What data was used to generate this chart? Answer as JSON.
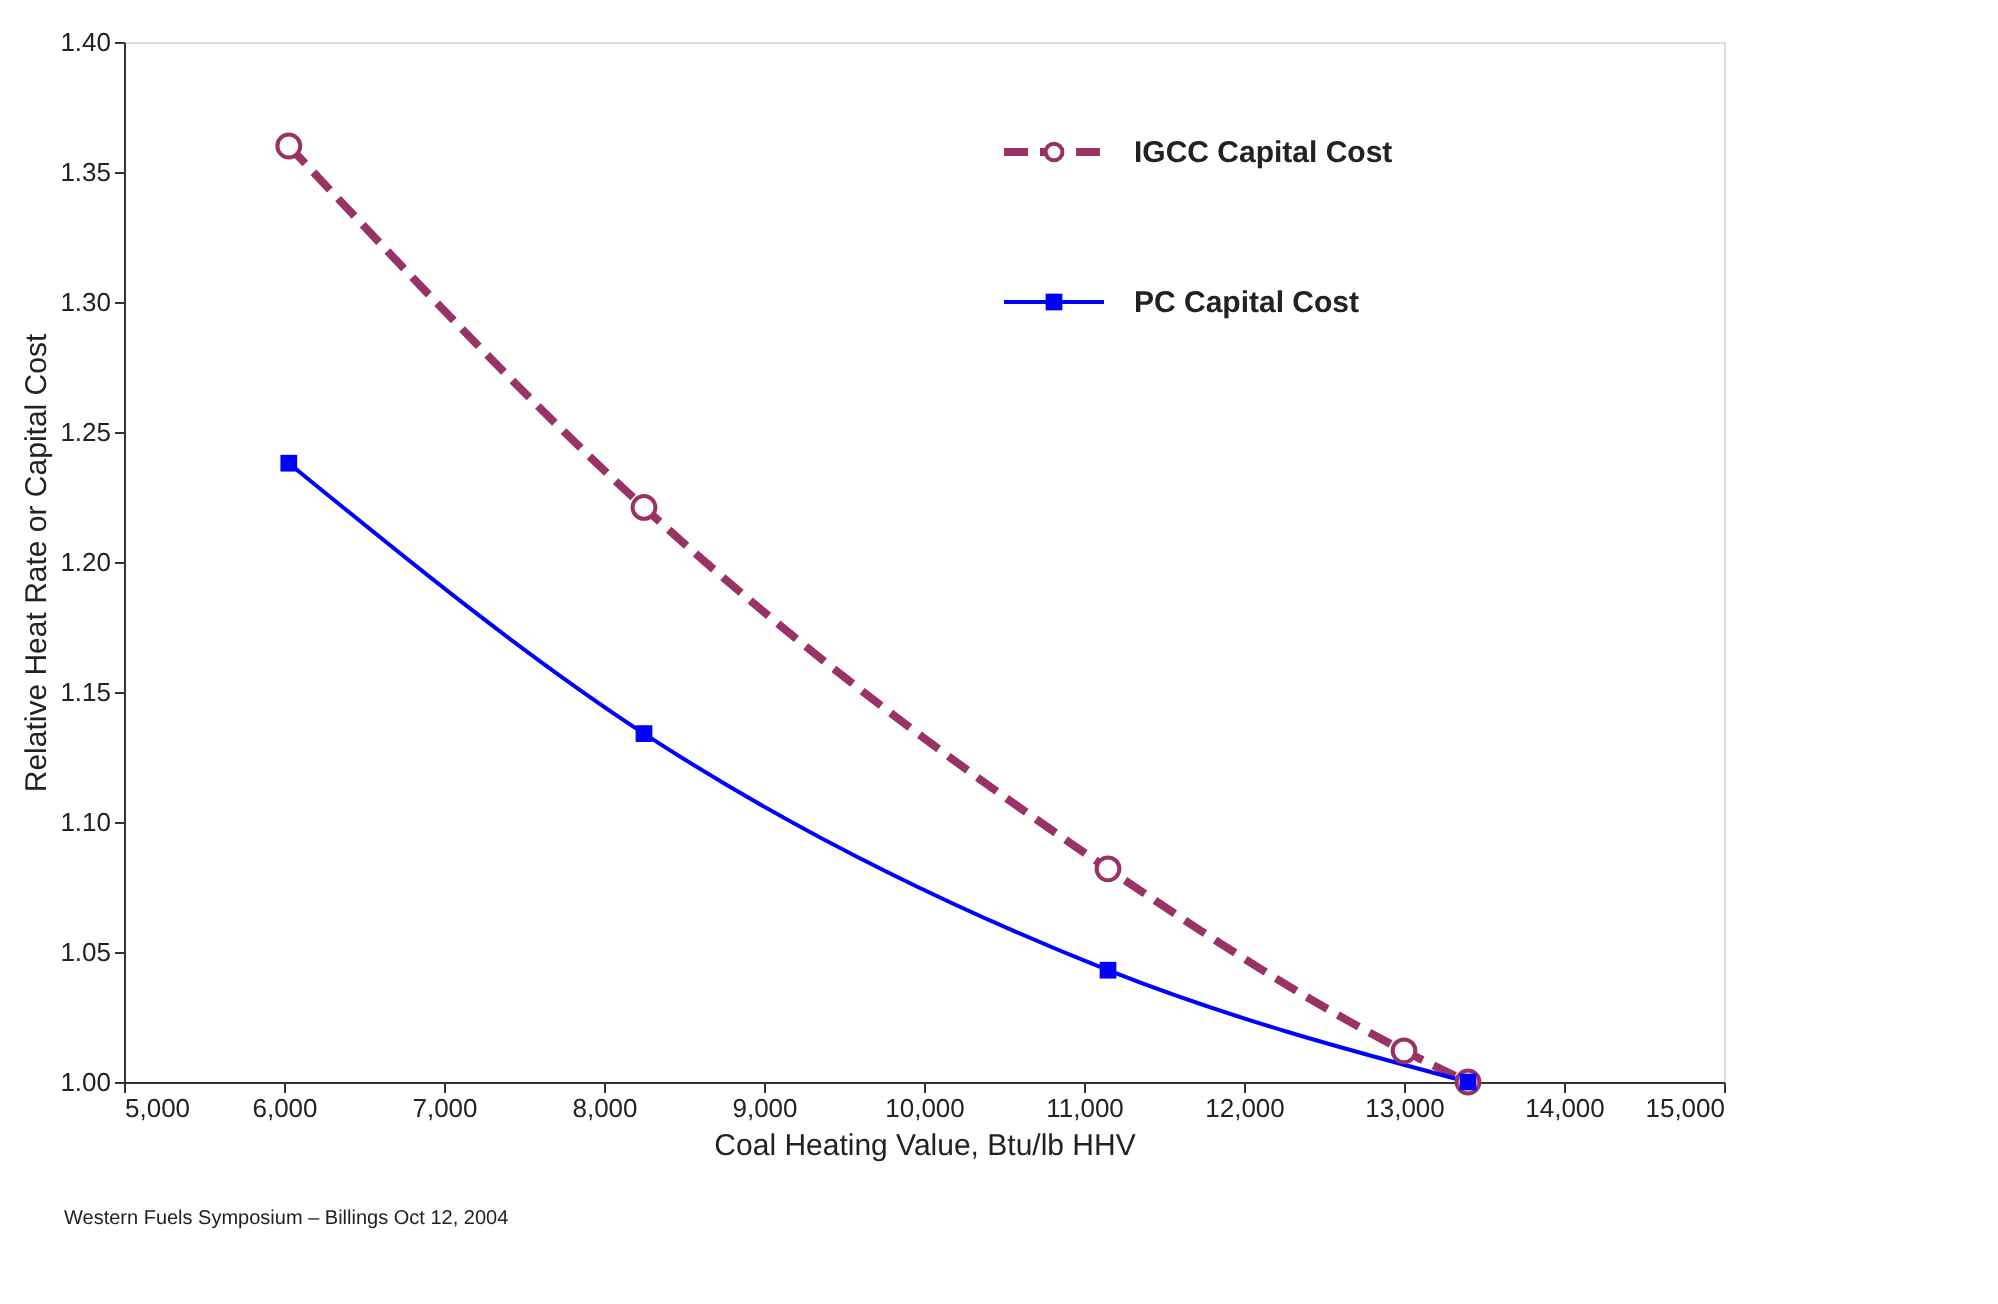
{
  "chart_data": {
    "type": "line",
    "xlabel": "Coal Heating Value, Btu/lb HHV",
    "ylabel": "Relative Heat Rate or Capital Cost",
    "xlim": [
      5000,
      15000
    ],
    "xticks": [
      {
        "value": 5000,
        "label": "5,000"
      },
      {
        "value": 6000,
        "label": "6,000"
      },
      {
        "value": 7000,
        "label": "7,000"
      },
      {
        "value": 8000,
        "label": "8,000"
      },
      {
        "value": 9000,
        "label": "9,000"
      },
      {
        "value": 10000,
        "label": "10,000"
      },
      {
        "value": 11000,
        "label": "11,000"
      },
      {
        "value": 12000,
        "label": "12,000"
      },
      {
        "value": 13000,
        "label": "13,000"
      },
      {
        "value": 14000,
        "label": "14,000"
      },
      {
        "value": 15000,
        "label": "15,000"
      }
    ],
    "ylim": [
      1.0,
      1.4
    ],
    "yticks": [
      {
        "value": 1.0,
        "label": "1.00"
      },
      {
        "value": 1.05,
        "label": "1.05"
      },
      {
        "value": 1.1,
        "label": "1.10"
      },
      {
        "value": 1.15,
        "label": "1.15"
      },
      {
        "value": 1.2,
        "label": "1.20"
      },
      {
        "value": 1.25,
        "label": "1.25"
      },
      {
        "value": 1.3,
        "label": "1.30"
      },
      {
        "value": 1.35,
        "label": "1.35"
      },
      {
        "value": 1.4,
        "label": "1.40"
      }
    ],
    "grid": false,
    "legend": "top right",
    "series": [
      {
        "name": "IGCC Capital Cost",
        "color": "#993366",
        "line_style": "dashed",
        "marker": "circle",
        "x": [
          6030,
          8250,
          11150,
          13000,
          13400
        ],
        "values": [
          1.36,
          1.221,
          1.082,
          1.012,
          1.0
        ]
      },
      {
        "name": "PC Capital Cost",
        "color": "#0000ff",
        "line_style": "solid",
        "marker": "square",
        "x": [
          6030,
          8250,
          11150,
          13400
        ],
        "values": [
          1.238,
          1.134,
          1.043,
          1.0
        ]
      }
    ],
    "annotations": [
      "Western Fuels Symposium – Billings Oct 12, 2004"
    ]
  }
}
